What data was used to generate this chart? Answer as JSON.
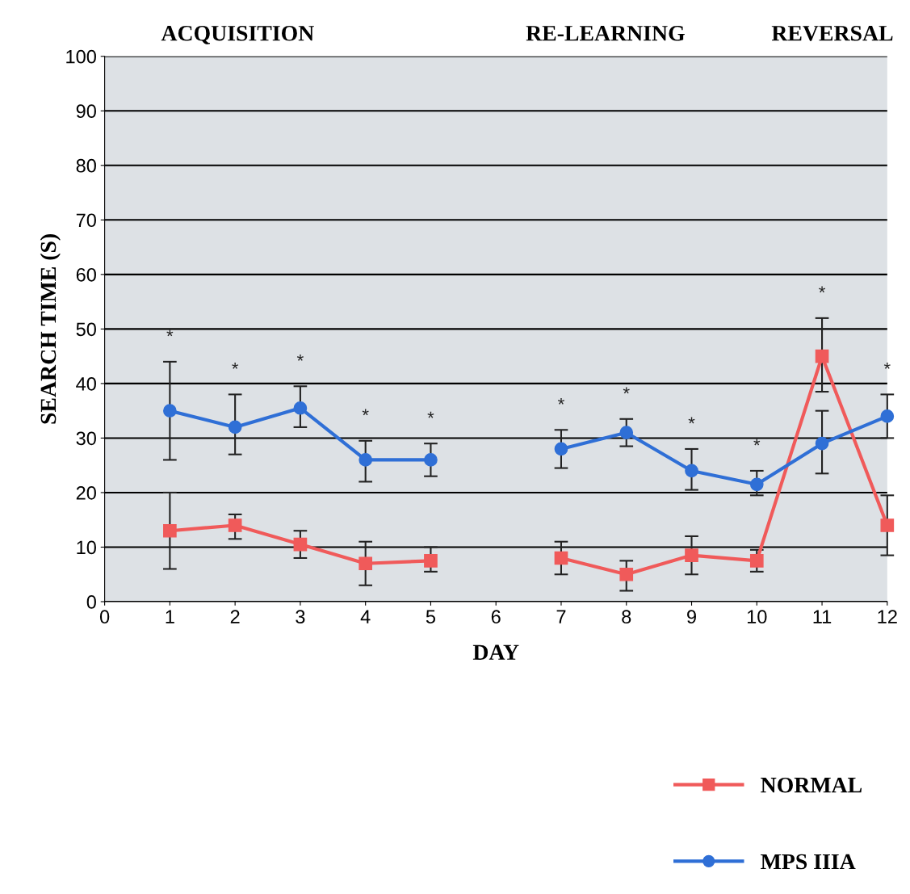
{
  "chart_data": {
    "type": "line",
    "xlabel": "DAY",
    "ylabel": "SEARCH TIME (S)",
    "x": [
      1,
      2,
      3,
      4,
      5,
      6,
      7,
      8,
      9,
      10,
      11,
      12
    ],
    "xlim": [
      0,
      12
    ],
    "xticks": [
      0,
      1,
      2,
      3,
      4,
      5,
      6,
      7,
      8,
      9,
      10,
      11,
      12
    ],
    "ylim": [
      0,
      100
    ],
    "yticks": [
      0,
      10,
      20,
      30,
      40,
      50,
      60,
      70,
      80,
      90,
      100
    ],
    "grid": "y",
    "legend": "bottom right",
    "series": [
      {
        "name": "NORMAL",
        "color": "#f05a5a",
        "marker": "square",
        "values": [
          13,
          14,
          10.5,
          7,
          7.5,
          null,
          8,
          5,
          8.5,
          7.5,
          45,
          14
        ],
        "errors": [
          [
            6,
            20
          ],
          [
            11.5,
            16
          ],
          [
            8,
            13
          ],
          [
            3,
            11
          ],
          [
            5.5,
            10
          ],
          null,
          [
            5,
            11
          ],
          [
            2,
            7.5
          ],
          [
            5,
            12
          ],
          [
            5.5,
            9.5
          ],
          [
            38.5,
            52
          ],
          [
            8.5,
            19.5
          ]
        ]
      },
      {
        "name": "MPS IIIA",
        "color": "#2f6fd6",
        "marker": "circle",
        "values": [
          35,
          32,
          35.5,
          26,
          26,
          null,
          28,
          31,
          24,
          21.5,
          29,
          34
        ],
        "errors": [
          [
            26,
            44
          ],
          [
            27,
            38
          ],
          [
            32,
            39.5
          ],
          [
            22,
            29.5
          ],
          [
            23,
            29
          ],
          null,
          [
            24.5,
            31.5
          ],
          [
            28.5,
            33.5
          ],
          [
            20.5,
            28
          ],
          [
            19.5,
            24
          ],
          [
            23.5,
            35
          ],
          [
            30,
            38
          ]
        ]
      }
    ],
    "annotations": [
      "ACQUISITION",
      "RE-LEARNING",
      "REVERSAL",
      "*",
      "*",
      "*",
      "*",
      "*",
      "*",
      "*",
      "*",
      "*",
      "*",
      "*"
    ]
  }
}
